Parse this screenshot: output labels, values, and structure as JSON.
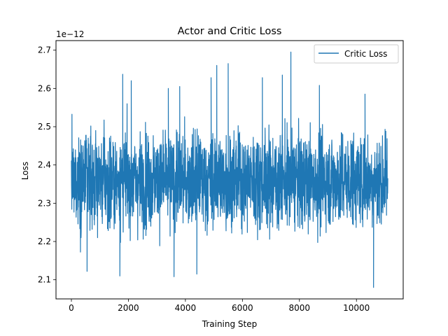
{
  "chart_data": {
    "type": "line",
    "title": "Actor and Critic Loss",
    "xlabel": "Training Step",
    "ylabel": "Loss",
    "y_offset_label": "1e−12",
    "xlim": [
      -540,
      11640
    ],
    "ylim": [
      2.05,
      2.725
    ],
    "x_ticks": [
      0,
      2000,
      4000,
      6000,
      8000,
      10000
    ],
    "x_tick_labels": [
      "0",
      "2000",
      "4000",
      "6000",
      "8000",
      "10000"
    ],
    "y_ticks": [
      2.1,
      2.2,
      2.3,
      2.4,
      2.5,
      2.6,
      2.7
    ],
    "y_tick_labels": [
      "2.1",
      "2.2",
      "2.3",
      "2.4",
      "2.5",
      "2.6",
      "2.7"
    ],
    "grid": false,
    "legend_position": "top-right",
    "series": [
      {
        "name": "Critic Loss",
        "color": "#1f77b4",
        "x_range": [
          0,
          11100
        ],
        "n_points": 11100,
        "typical_low": 2.22,
        "typical_high": 2.53,
        "center": 2.36,
        "min": 2.08,
        "max": 2.695,
        "spikes": [
          {
            "x": 7700,
            "y": 2.695
          },
          {
            "x": 5500,
            "y": 2.665
          },
          {
            "x": 5100,
            "y": 2.66
          },
          {
            "x": 1800,
            "y": 2.637
          },
          {
            "x": 2100,
            "y": 2.62
          },
          {
            "x": 7400,
            "y": 2.635
          },
          {
            "x": 6700,
            "y": 2.628
          },
          {
            "x": 4900,
            "y": 2.628
          },
          {
            "x": 3800,
            "y": 2.605
          },
          {
            "x": 3400,
            "y": 2.6
          },
          {
            "x": 8700,
            "y": 2.608
          },
          {
            "x": 10300,
            "y": 2.585
          },
          {
            "x": 10600,
            "y": 2.08
          },
          {
            "x": 3600,
            "y": 2.108
          },
          {
            "x": 1700,
            "y": 2.11
          },
          {
            "x": 550,
            "y": 2.122
          },
          {
            "x": 4400,
            "y": 2.115
          }
        ]
      }
    ]
  }
}
